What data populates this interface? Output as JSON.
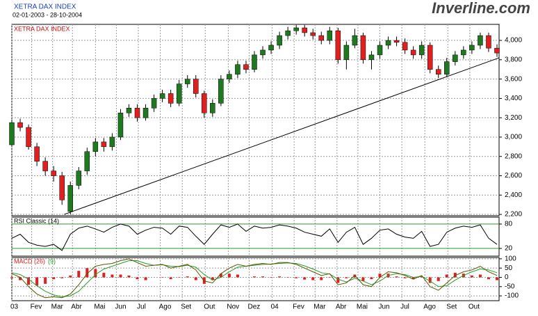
{
  "header": {
    "title": "XETRA DAX INDEX",
    "date_range": "02-01-2003 - 28-10-2004",
    "logo": "Inverline.com"
  },
  "chart_data": [
    {
      "type": "candlestick",
      "label": "XETRA DAX INDEX",
      "x": [
        0,
        8,
        16,
        24,
        32,
        40,
        48,
        56,
        64,
        72,
        80,
        88,
        96,
        104,
        112,
        120,
        128,
        136,
        144,
        152,
        160,
        168,
        176,
        184,
        192,
        200,
        208,
        216,
        224,
        232,
        240,
        248,
        256,
        264,
        272,
        280,
        288,
        296,
        304,
        312,
        320,
        328,
        336,
        344,
        352,
        360,
        368,
        376,
        384,
        392,
        400,
        408,
        416,
        424,
        432,
        440,
        448,
        456,
        464
      ],
      "open": [
        2920,
        3150,
        3100,
        2900,
        2750,
        2650,
        2600,
        2230,
        2500,
        2650,
        2850,
        2950,
        2900,
        3000,
        3250,
        3300,
        3200,
        3300,
        3400,
        3450,
        3350,
        3550,
        3600,
        3450,
        3250,
        3350,
        3600,
        3650,
        3750,
        3700,
        3850,
        3900,
        3950,
        4050,
        4100,
        4130,
        4080,
        4050,
        4000,
        4100,
        3800,
        3950,
        4050,
        3800,
        3850,
        3950,
        4000,
        3980,
        3900,
        3850,
        3950,
        3700,
        3650,
        3780,
        3850,
        3900,
        3950,
        4050,
        3920
      ],
      "high": [
        3180,
        3190,
        3130,
        2940,
        2790,
        2700,
        2640,
        2540,
        2690,
        2890,
        2990,
        2990,
        3040,
        3290,
        3340,
        3340,
        3340,
        3440,
        3490,
        3490,
        3590,
        3640,
        3640,
        3480,
        3390,
        3640,
        3690,
        3790,
        3790,
        3890,
        3940,
        3990,
        4090,
        4140,
        4160,
        4160,
        4120,
        4090,
        4140,
        4130,
        3990,
        4120,
        4080,
        3890,
        3990,
        4040,
        4040,
        4020,
        3940,
        3990,
        3980,
        3740,
        3820,
        3890,
        3940,
        3990,
        4080,
        4080,
        3960
      ],
      "low": [
        2900,
        3060,
        2870,
        2700,
        2600,
        2540,
        2300,
        2200,
        2460,
        2610,
        2800,
        2850,
        2860,
        2970,
        3210,
        3160,
        3170,
        3260,
        3360,
        3310,
        3320,
        3510,
        3410,
        3200,
        3210,
        3320,
        3560,
        3610,
        3660,
        3670,
        3810,
        3860,
        3910,
        4010,
        4060,
        4040,
        4010,
        3960,
        3960,
        3760,
        3700,
        3920,
        3760,
        3700,
        3810,
        3910,
        3940,
        3860,
        3810,
        3810,
        3660,
        3610,
        3620,
        3740,
        3810,
        3860,
        3910,
        3880,
        3830
      ],
      "close": [
        3150,
        3100,
        2900,
        2750,
        2650,
        2600,
        2350,
        2500,
        2650,
        2850,
        2950,
        2900,
        3000,
        3250,
        3300,
        3200,
        3300,
        3400,
        3450,
        3350,
        3550,
        3600,
        3450,
        3250,
        3350,
        3600,
        3650,
        3750,
        3700,
        3850,
        3900,
        3950,
        4050,
        4100,
        4130,
        4080,
        4050,
        4000,
        4100,
        3800,
        3950,
        4050,
        3800,
        3850,
        3950,
        4000,
        3980,
        3900,
        3850,
        3950,
        3700,
        3650,
        3780,
        3850,
        3900,
        3950,
        4050,
        3920,
        3870
      ],
      "up_color": "#1f7a1f",
      "down_color": "#e02020",
      "xlim": [
        0,
        466
      ],
      "xticks": [
        {
          "value": 0,
          "label": "03"
        },
        {
          "value": 19,
          "label": "Fev"
        },
        {
          "value": 39,
          "label": "Mar"
        },
        {
          "value": 58,
          "label": "Abr"
        },
        {
          "value": 80,
          "label": "Mai"
        },
        {
          "value": 100,
          "label": "Jun"
        },
        {
          "value": 121,
          "label": "Jul"
        },
        {
          "value": 142,
          "label": "Ago"
        },
        {
          "value": 163,
          "label": "Set"
        },
        {
          "value": 185,
          "label": "Out"
        },
        {
          "value": 207,
          "label": "Nov"
        },
        {
          "value": 227,
          "label": "Dez"
        },
        {
          "value": 249,
          "label": "04"
        },
        {
          "value": 270,
          "label": "Fev"
        },
        {
          "value": 290,
          "label": "Mar"
        },
        {
          "value": 311,
          "label": "Abr"
        },
        {
          "value": 331,
          "label": "Mai"
        },
        {
          "value": 352,
          "label": "Jun"
        },
        {
          "value": 373,
          "label": "Jul"
        },
        {
          "value": 395,
          "label": "Ago"
        },
        {
          "value": 417,
          "label": "Set"
        },
        {
          "value": 438,
          "label": "Out"
        }
      ],
      "ylim": [
        2186,
        4166
      ],
      "yticks": [
        {
          "value": 2200,
          "label": "2,200"
        },
        {
          "value": 2400,
          "label": "2,400"
        },
        {
          "value": 2600,
          "label": "2,600"
        },
        {
          "value": 2800,
          "label": "2,800"
        },
        {
          "value": 3000,
          "label": "3,000"
        },
        {
          "value": 3200,
          "label": "3,200"
        },
        {
          "value": 3400,
          "label": "3,400"
        },
        {
          "value": 3600,
          "label": "3,600"
        },
        {
          "value": 3800,
          "label": "3,800"
        },
        {
          "value": 4000,
          "label": "4,000"
        }
      ],
      "grid": true,
      "trendline": {
        "x": [
          50,
          466
        ],
        "y": [
          2200,
          3820
        ]
      }
    },
    {
      "type": "line",
      "label": "RSI Classic (14)",
      "series": [
        {
          "color": "#000000",
          "values": [
            45,
            55,
            35,
            28,
            25,
            30,
            15,
            55,
            70,
            75,
            68,
            60,
            72,
            80,
            75,
            55,
            65,
            72,
            70,
            55,
            75,
            72,
            50,
            30,
            55,
            78,
            72,
            80,
            62,
            75,
            70,
            72,
            78,
            75,
            70,
            60,
            55,
            50,
            68,
            35,
            60,
            72,
            30,
            45,
            65,
            68,
            55,
            48,
            45,
            62,
            25,
            30,
            60,
            70,
            75,
            72,
            78,
            45,
            30
          ]
        }
      ],
      "ylim": [
        1,
        97
      ],
      "yticks": [
        20,
        80
      ],
      "level_color": "#2a9a2a"
    },
    {
      "type": "macd",
      "series": [
        {
          "name": "MACD (26)",
          "style": "bar",
          "color": "#e02020",
          "values": [
            -5,
            -15,
            -40,
            -45,
            -35,
            -10,
            -5,
            10,
            35,
            50,
            45,
            25,
            15,
            15,
            10,
            -10,
            -15,
            0,
            2,
            -10,
            2,
            5,
            -15,
            -35,
            -15,
            20,
            20,
            15,
            0,
            5,
            5,
            -2,
            5,
            2,
            -5,
            -12,
            -15,
            -15,
            2,
            -30,
            -5,
            15,
            -20,
            -10,
            20,
            20,
            5,
            -5,
            -10,
            5,
            -30,
            -20,
            15,
            25,
            20,
            10,
            15,
            -10,
            -15
          ]
        },
        {
          "name": "(9)",
          "style": "line",
          "color": "#2a9a2a",
          "values": [
            25,
            15,
            -10,
            -45,
            -75,
            -95,
            -105,
            -100,
            -75,
            -30,
            15,
            45,
            60,
            75,
            90,
            90,
            75,
            65,
            68,
            60,
            58,
            65,
            55,
            15,
            -15,
            0,
            30,
            55,
            60,
            65,
            70,
            72,
            75,
            78,
            75,
            62,
            45,
            25,
            18,
            -10,
            -25,
            -5,
            -20,
            -40,
            -20,
            10,
            20,
            15,
            0,
            5,
            -20,
            -50,
            -45,
            -15,
            10,
            30,
            45,
            40,
            25
          ]
        },
        {
          "style": "line",
          "color": "#555500",
          "values": [
            20,
            0,
            -50,
            -90,
            -110,
            -105,
            -110,
            -90,
            -40,
            20,
            60,
            70,
            75,
            90,
            100,
            80,
            60,
            65,
            70,
            50,
            60,
            70,
            40,
            -20,
            -30,
            20,
            50,
            70,
            60,
            70,
            75,
            70,
            80,
            80,
            70,
            50,
            30,
            10,
            20,
            -40,
            -30,
            10,
            -40,
            -50,
            0,
            30,
            25,
            10,
            -10,
            10,
            -50,
            -70,
            -30,
            10,
            30,
            40,
            60,
            30,
            10
          ]
        }
      ],
      "ylim": [
        -126,
        107
      ],
      "yticks": [
        -100,
        -50,
        0,
        50,
        100
      ]
    }
  ]
}
